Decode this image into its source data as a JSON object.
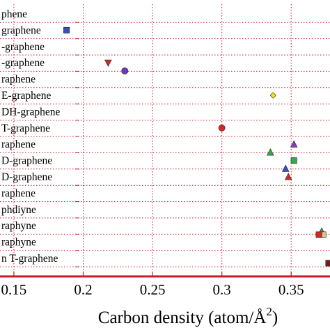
{
  "chart_data": {
    "type": "scatter",
    "title": "",
    "xlabel": "Carbon density (atom/Å",
    "xlabel_superscript": "2",
    "xlabel_suffix": ")",
    "xlim": [
      0.14,
      0.378
    ],
    "ylabel": "",
    "grid": true,
    "axis_color": "#c8182a",
    "x_ticks": [
      {
        "value": 0.15,
        "label": "0.15"
      },
      {
        "value": 0.2,
        "label": "0.2"
      },
      {
        "value": 0.25,
        "label": "0.25"
      },
      {
        "value": 0.3,
        "label": "0.3"
      },
      {
        "value": 0.35,
        "label": "0.35"
      }
    ],
    "categories": [
      "phene",
      "graphene",
      "-graphene",
      "-graphene",
      "raphene",
      "E-graphene",
      "DH-graphene",
      "T-graphene",
      "raphene",
      "D-graphene",
      "D-graphene",
      "raphene",
      "phdiyne",
      "raphyne",
      "raphyne",
      "n T-graphene"
    ],
    "points": [
      {
        "category_index": 1,
        "x": 0.188,
        "marker": "square",
        "color": "#3a4fb8"
      },
      {
        "category_index": 3,
        "x": 0.218,
        "marker": "triangle-down",
        "color": "#d42828"
      },
      {
        "category_index": 3.5,
        "x": 0.23,
        "marker": "circle",
        "color": "#6a3ab8"
      },
      {
        "category_index": 5,
        "x": 0.337,
        "marker": "diamond",
        "color": "#f2e600"
      },
      {
        "category_index": 7,
        "x": 0.3,
        "marker": "circle",
        "color": "#d42828"
      },
      {
        "category_index": 8,
        "x": 0.352,
        "marker": "triangle-up",
        "color": "#8a3ab8"
      },
      {
        "category_index": 8.5,
        "x": 0.335,
        "marker": "triangle-up",
        "color": "#3aa84a"
      },
      {
        "category_index": 9,
        "x": 0.352,
        "marker": "square",
        "color": "#3aa84a"
      },
      {
        "category_index": 9.5,
        "x": 0.346,
        "marker": "triangle-up",
        "color": "#3a4fb8"
      },
      {
        "category_index": 10,
        "x": 0.348,
        "marker": "triangle-up",
        "color": "#d42828"
      },
      {
        "category_index": 13.35,
        "x": 0.372,
        "marker": "triangle-up",
        "color": "#3aa84a"
      },
      {
        "category_index": 13.55,
        "x": 0.373,
        "marker": "square",
        "color": "#d8c890"
      },
      {
        "category_index": 13.55,
        "x": 0.37,
        "marker": "square",
        "color": "#d42828"
      },
      {
        "category_index": 15.3,
        "x": 0.377,
        "marker": "square",
        "color": "#7a1a1a"
      }
    ]
  }
}
